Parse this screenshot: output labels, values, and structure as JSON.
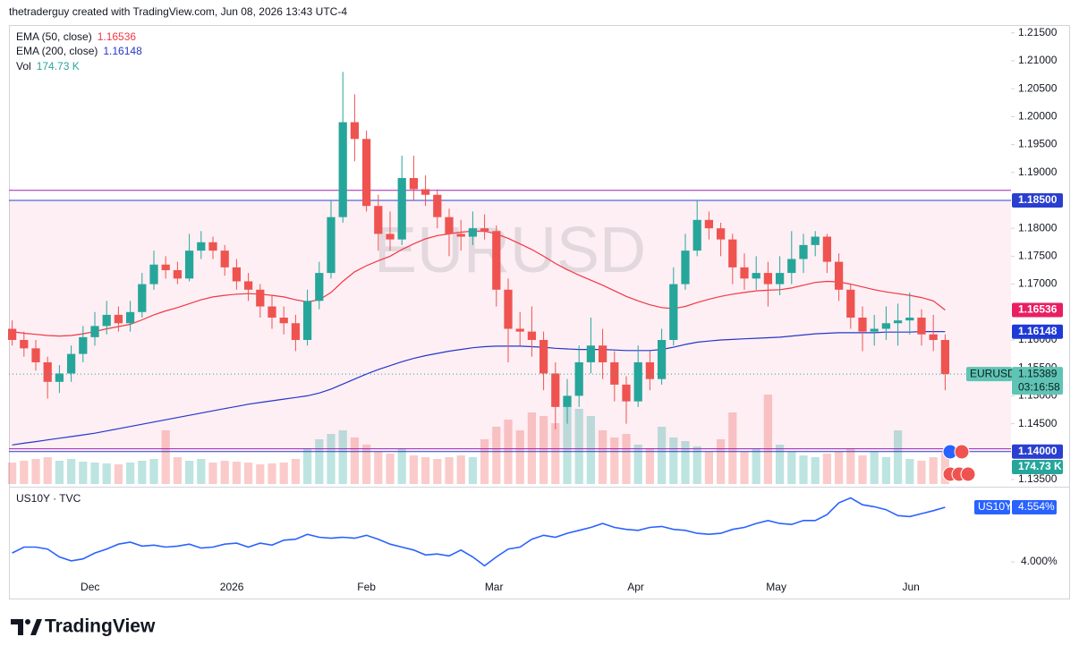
{
  "header": "thetraderguy created with TradingView.com, Jun 08, 2026 13:43 UTC-4",
  "logo": "TradingView",
  "chart_data": [
    {
      "type": "candlestick",
      "symbol": "EURUSD",
      "countdown": "03:16:58",
      "up_color": "#26a69a",
      "down_color": "#ef5350",
      "xlim": [
        -0.5,
        79.5
      ],
      "xticks": [
        {
          "value": 6.6,
          "label": "Dec"
        },
        {
          "value": 18.6,
          "label": "2026"
        },
        {
          "value": 30,
          "label": "Feb"
        },
        {
          "value": 40.8,
          "label": "Mar"
        },
        {
          "value": 52.8,
          "label": "Apr"
        },
        {
          "value": 64.7,
          "label": "May"
        },
        {
          "value": 76.1,
          "label": "Jun"
        }
      ],
      "ylim": [
        1.1342,
        1.2164
      ],
      "yticks": [
        {
          "value": 1.135,
          "label": "1.13500"
        },
        {
          "value": 1.145,
          "label": "1.14500"
        },
        {
          "value": 1.15,
          "label": "1.15000"
        },
        {
          "value": 1.155,
          "label": "1.15500"
        },
        {
          "value": 1.16,
          "label": "1.16000"
        },
        {
          "value": 1.17,
          "label": "1.17000"
        },
        {
          "value": 1.175,
          "label": "1.17500"
        },
        {
          "value": 1.18,
          "label": "1.18000"
        },
        {
          "value": 1.19,
          "label": "1.19000"
        },
        {
          "value": 1.195,
          "label": "1.19500"
        },
        {
          "value": 1.2,
          "label": "1.20000"
        },
        {
          "value": 1.205,
          "label": "1.20500"
        },
        {
          "value": 1.21,
          "label": "1.21000"
        },
        {
          "value": 1.215,
          "label": "1.21500"
        }
      ],
      "zone": {
        "from": 1.14,
        "to": 1.185,
        "color": "rgba(233,30,99,0.07)"
      },
      "levels": [
        {
          "value": 1.1868,
          "color": "#9c27b0"
        },
        {
          "value": 1.185,
          "label": "1.18500",
          "color": "#2a3fcf"
        },
        {
          "value": 1.1405,
          "color": "#9c27b0"
        },
        {
          "value": 1.14,
          "label": "1.14000",
          "color": "#2a3fcf"
        }
      ],
      "candles": [
        [
          1.162,
          1.1635,
          1.159,
          1.16
        ],
        [
          1.16,
          1.1615,
          1.157,
          1.1585
        ],
        [
          1.1585,
          1.16,
          1.1545,
          1.156
        ],
        [
          1.156,
          1.157,
          1.1495,
          1.1525
        ],
        [
          1.1525,
          1.1555,
          1.1505,
          1.154
        ],
        [
          1.154,
          1.159,
          1.1525,
          1.1575
        ],
        [
          1.1575,
          1.1625,
          1.156,
          1.1605
        ],
        [
          1.1605,
          1.165,
          1.159,
          1.1625
        ],
        [
          1.1625,
          1.167,
          1.161,
          1.1645
        ],
        [
          1.1645,
          1.166,
          1.1615,
          1.163
        ],
        [
          1.163,
          1.167,
          1.1615,
          1.165
        ],
        [
          1.165,
          1.172,
          1.164,
          1.17
        ],
        [
          1.17,
          1.176,
          1.169,
          1.1735
        ],
        [
          1.1735,
          1.175,
          1.171,
          1.1725
        ],
        [
          1.1725,
          1.174,
          1.17,
          1.171
        ],
        [
          1.171,
          1.179,
          1.1705,
          1.176
        ],
        [
          1.176,
          1.1795,
          1.1745,
          1.1775
        ],
        [
          1.1775,
          1.1785,
          1.1745,
          1.176
        ],
        [
          1.176,
          1.177,
          1.1715,
          1.173
        ],
        [
          1.173,
          1.1745,
          1.169,
          1.1705
        ],
        [
          1.1705,
          1.172,
          1.167,
          1.169
        ],
        [
          1.169,
          1.17,
          1.164,
          1.166
        ],
        [
          1.166,
          1.168,
          1.162,
          1.164
        ],
        [
          1.164,
          1.166,
          1.161,
          1.163
        ],
        [
          1.163,
          1.1645,
          1.158,
          1.16
        ],
        [
          1.16,
          1.169,
          1.159,
          1.167
        ],
        [
          1.167,
          1.174,
          1.1655,
          1.172
        ],
        [
          1.172,
          1.185,
          1.171,
          1.182
        ],
        [
          1.182,
          1.208,
          1.181,
          1.199
        ],
        [
          1.199,
          1.204,
          1.192,
          1.196
        ],
        [
          1.196,
          1.1975,
          1.183,
          1.184
        ],
        [
          1.184,
          1.186,
          1.176,
          1.179
        ],
        [
          1.179,
          1.183,
          1.176,
          1.178
        ],
        [
          1.178,
          1.193,
          1.177,
          1.189
        ],
        [
          1.189,
          1.193,
          1.185,
          1.187
        ],
        [
          1.187,
          1.1895,
          1.184,
          1.186
        ],
        [
          1.186,
          1.187,
          1.18,
          1.182
        ],
        [
          1.182,
          1.1835,
          1.175,
          1.179
        ],
        [
          1.179,
          1.1815,
          1.176,
          1.1785
        ],
        [
          1.1785,
          1.183,
          1.177,
          1.18
        ],
        [
          1.18,
          1.1825,
          1.178,
          1.1795
        ],
        [
          1.1795,
          1.1805,
          1.166,
          1.169
        ],
        [
          1.169,
          1.171,
          1.156,
          1.162
        ],
        [
          1.162,
          1.165,
          1.159,
          1.1615
        ],
        [
          1.1615,
          1.166,
          1.157,
          1.16
        ],
        [
          1.16,
          1.1615,
          1.151,
          1.154
        ],
        [
          1.154,
          1.156,
          1.144,
          1.148
        ],
        [
          1.148,
          1.153,
          1.145,
          1.15
        ],
        [
          1.15,
          1.159,
          1.148,
          1.156
        ],
        [
          1.156,
          1.164,
          1.154,
          1.159
        ],
        [
          1.159,
          1.162,
          1.153,
          1.156
        ],
        [
          1.156,
          1.158,
          1.149,
          1.152
        ],
        [
          1.152,
          1.1535,
          1.145,
          1.149
        ],
        [
          1.149,
          1.159,
          1.148,
          1.156
        ],
        [
          1.156,
          1.158,
          1.151,
          1.153
        ],
        [
          1.153,
          1.162,
          1.152,
          1.16
        ],
        [
          1.16,
          1.173,
          1.159,
          1.17
        ],
        [
          1.17,
          1.179,
          1.169,
          1.176
        ],
        [
          1.176,
          1.185,
          1.175,
          1.1815
        ],
        [
          1.1815,
          1.183,
          1.178,
          1.18
        ],
        [
          1.18,
          1.181,
          1.175,
          1.178
        ],
        [
          1.178,
          1.179,
          1.17,
          1.173
        ],
        [
          1.173,
          1.1755,
          1.169,
          1.171
        ],
        [
          1.171,
          1.175,
          1.169,
          1.172
        ],
        [
          1.172,
          1.174,
          1.166,
          1.17
        ],
        [
          1.17,
          1.175,
          1.168,
          1.172
        ],
        [
          1.172,
          1.1795,
          1.17,
          1.1745
        ],
        [
          1.1745,
          1.179,
          1.172,
          1.177
        ],
        [
          1.177,
          1.1795,
          1.175,
          1.1785
        ],
        [
          1.1785,
          1.179,
          1.172,
          1.174
        ],
        [
          1.174,
          1.1755,
          1.167,
          1.169
        ],
        [
          1.169,
          1.17,
          1.162,
          1.164
        ],
        [
          1.164,
          1.166,
          1.158,
          1.1615
        ],
        [
          1.1615,
          1.1645,
          1.159,
          1.162
        ],
        [
          1.162,
          1.166,
          1.16,
          1.163
        ],
        [
          1.163,
          1.1665,
          1.159,
          1.1635
        ],
        [
          1.1635,
          1.1685,
          1.161,
          1.164
        ],
        [
          1.164,
          1.1655,
          1.159,
          1.161
        ],
        [
          1.161,
          1.1645,
          1.158,
          1.16
        ],
        [
          1.16,
          1.161,
          1.151,
          1.15389
        ]
      ],
      "series": [
        {
          "name": "EMA (50, close)",
          "color": "#f23645",
          "label_color": "#e91e63",
          "values": [
            1.1615,
            1.1612,
            1.161,
            1.1608,
            1.1607,
            1.1608,
            1.1611,
            1.1615,
            1.162,
            1.1624,
            1.1628,
            1.1636,
            1.1645,
            1.1652,
            1.1658,
            1.1665,
            1.1672,
            1.1677,
            1.168,
            1.1682,
            1.1683,
            1.1682,
            1.168,
            1.1677,
            1.1672,
            1.1668,
            1.1672,
            1.1685,
            1.1705,
            1.1722,
            1.1733,
            1.1742,
            1.175,
            1.1762,
            1.1772,
            1.1781,
            1.1787,
            1.179,
            1.1793,
            1.1795,
            1.1795,
            1.179,
            1.1782,
            1.1772,
            1.1762,
            1.175,
            1.1737,
            1.1726,
            1.1716,
            1.1707,
            1.1698,
            1.1688,
            1.1678,
            1.167,
            1.1663,
            1.1658,
            1.1656,
            1.166,
            1.1667,
            1.1673,
            1.1678,
            1.1682,
            1.1685,
            1.1688,
            1.1689,
            1.169,
            1.1693,
            1.1698,
            1.1703,
            1.1705,
            1.1704,
            1.17,
            1.1695,
            1.169,
            1.1686,
            1.1683,
            1.168,
            1.1676,
            1.167,
            1.16536
          ]
        },
        {
          "name": "EMA (200, close)",
          "color": "#2636c9",
          "label_color": "#1e3ad6",
          "values": [
            1.1412,
            1.1415,
            1.1418,
            1.1421,
            1.1424,
            1.1427,
            1.143,
            1.1433,
            1.1437,
            1.1441,
            1.1445,
            1.1449,
            1.1453,
            1.1457,
            1.1461,
            1.1465,
            1.1469,
            1.1473,
            1.1477,
            1.1481,
            1.1485,
            1.1488,
            1.1491,
            1.1494,
            1.1497,
            1.15,
            1.1505,
            1.1512,
            1.1521,
            1.153,
            1.1539,
            1.1547,
            1.1554,
            1.1561,
            1.1567,
            1.1572,
            1.1576,
            1.158,
            1.1583,
            1.1586,
            1.1588,
            1.1589,
            1.1589,
            1.1589,
            1.1588,
            1.1587,
            1.1585,
            1.1584,
            1.1583,
            1.1583,
            1.1583,
            1.1582,
            1.1581,
            1.1581,
            1.1581,
            1.1583,
            1.1587,
            1.1592,
            1.1596,
            1.1598,
            1.16,
            1.1601,
            1.1602,
            1.1603,
            1.1604,
            1.1605,
            1.1607,
            1.1609,
            1.1611,
            1.1612,
            1.1613,
            1.1613,
            1.1613,
            1.1613,
            1.1614,
            1.1614,
            1.1614,
            1.1615,
            1.1615,
            1.16148
          ]
        }
      ],
      "volume": {
        "name": "Vol",
        "color": "#26a69a",
        "last_label": "174.73 K",
        "values": [
          120,
          130,
          140,
          150,
          130,
          140,
          125,
          120,
          115,
          110,
          120,
          130,
          140,
          300,
          150,
          130,
          140,
          120,
          130,
          125,
          120,
          110,
          115,
          120,
          140,
          200,
          250,
          280,
          300,
          260,
          220,
          180,
          170,
          200,
          160,
          150,
          140,
          150,
          160,
          150,
          250,
          320,
          360,
          300,
          400,
          380,
          340,
          460,
          420,
          380,
          300,
          260,
          280,
          220,
          200,
          320,
          260,
          240,
          210,
          180,
          250,
          400,
          180,
          200,
          500,
          220,
          180,
          160,
          150,
          170,
          180,
          200,
          160,
          180,
          150,
          300,
          140,
          130,
          150,
          174.73
        ]
      }
    },
    {
      "type": "line",
      "name": "US10Y",
      "title": "US10Y · TVC",
      "color": "#2962ff",
      "value_label": "4.554%",
      "ylim": [
        3.618,
        4.727
      ],
      "yticks": [
        {
          "value": 4,
          "label": "4.000%"
        }
      ],
      "values": [
        4.09,
        4.15,
        4.15,
        4.13,
        4.05,
        4.01,
        4.03,
        4.09,
        4.13,
        4.18,
        4.2,
        4.16,
        4.17,
        4.15,
        4.16,
        4.18,
        4.14,
        4.15,
        4.18,
        4.19,
        4.15,
        4.19,
        4.17,
        4.22,
        4.23,
        4.28,
        4.25,
        4.24,
        4.25,
        4.24,
        4.27,
        4.23,
        4.18,
        4.15,
        4.12,
        4.07,
        4.08,
        4.06,
        4.12,
        4.05,
        3.96,
        4.05,
        4.13,
        4.15,
        4.23,
        4.27,
        4.25,
        4.29,
        4.32,
        4.35,
        4.39,
        4.35,
        4.33,
        4.32,
        4.35,
        4.36,
        4.33,
        4.32,
        4.29,
        4.28,
        4.29,
        4.33,
        4.35,
        4.39,
        4.42,
        4.39,
        4.38,
        4.42,
        4.42,
        4.48,
        4.6,
        4.65,
        4.58,
        4.56,
        4.53,
        4.47,
        4.46,
        4.49,
        4.52,
        4.554
      ]
    }
  ]
}
